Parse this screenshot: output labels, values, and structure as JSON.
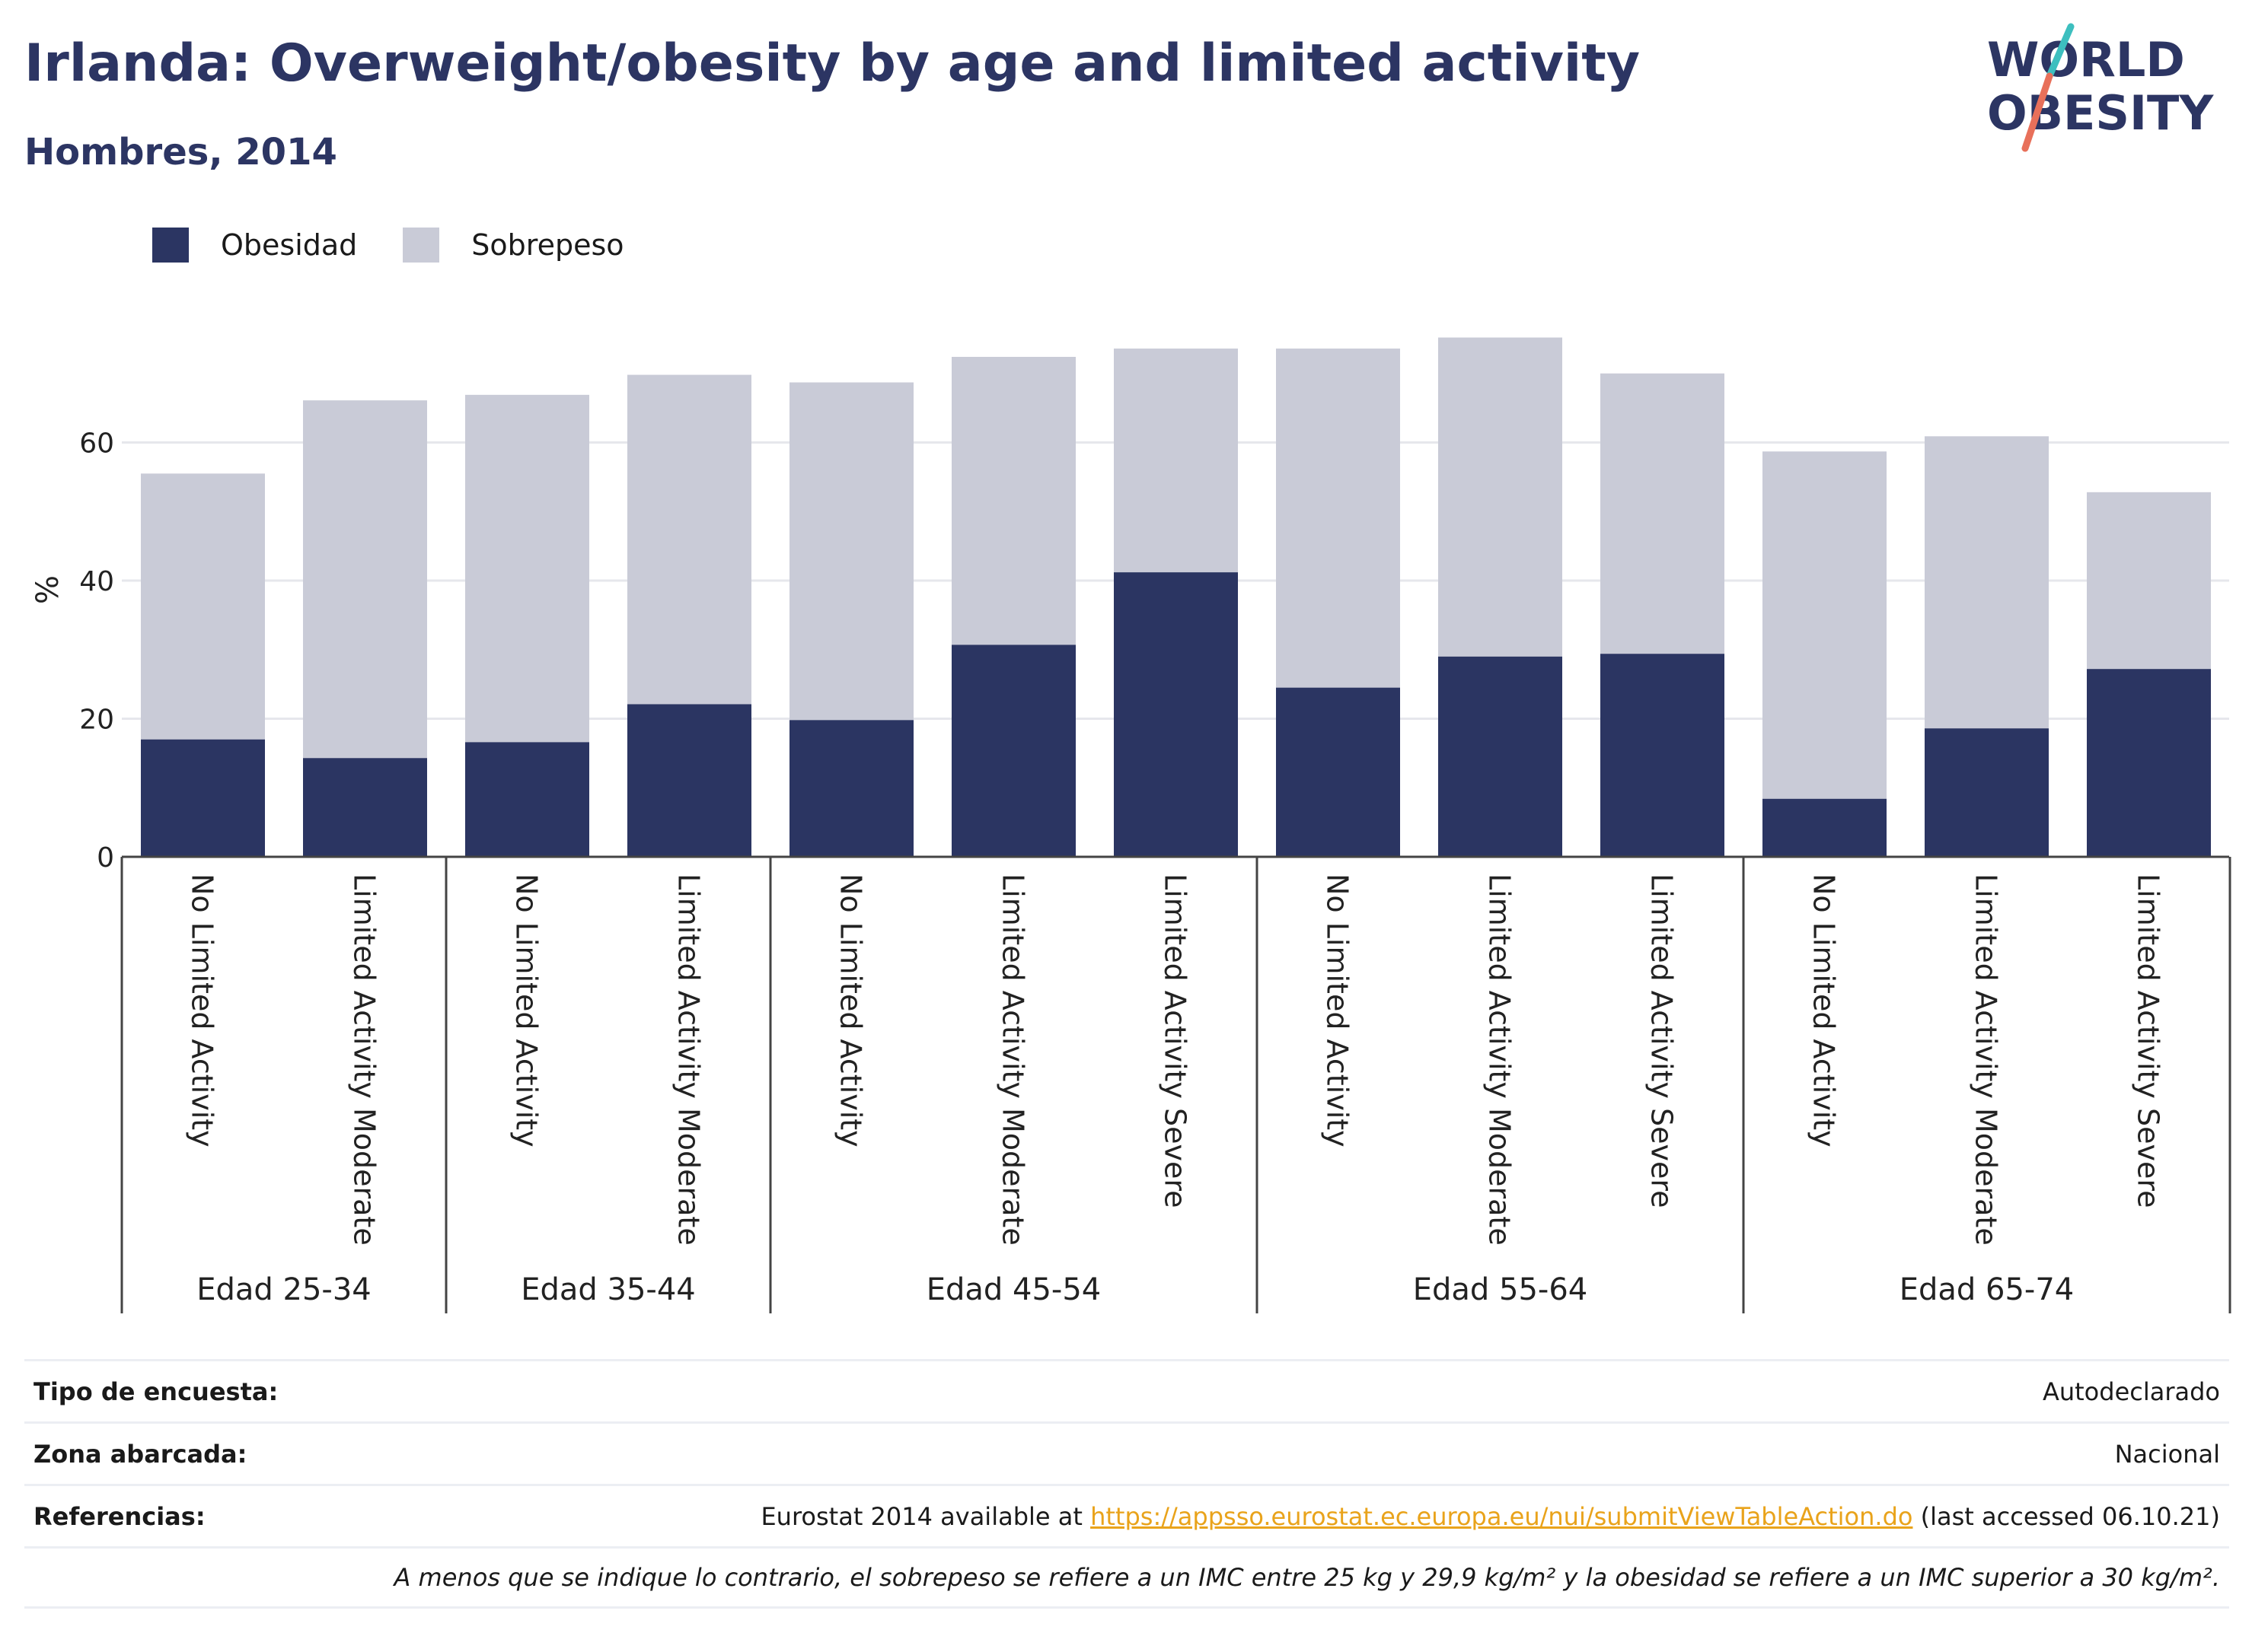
{
  "header": {
    "title": "Irlanda: Overweight/obesity by age and limited activity",
    "subtitle": "Hombres, 2014"
  },
  "logo": {
    "line1": "WORLD",
    "line2": "OBESITY"
  },
  "colors": {
    "obesity": "#2b3562",
    "overweight": "#c9cbd7",
    "title": "#2c3563",
    "link": "#e9a31b"
  },
  "legend": [
    {
      "label": "Obesidad",
      "color": "#2b3562"
    },
    {
      "label": "Sobrepeso",
      "color": "#c9cbd7"
    }
  ],
  "chart_data": {
    "type": "bar",
    "stacked": true,
    "ylabel": "%",
    "ylim": [
      0,
      80
    ],
    "yticks": [
      0,
      20,
      40,
      60
    ],
    "grid": true,
    "legend_position": "top-left",
    "groups": [
      {
        "label": "Edad 25-34",
        "categories": [
          "No Limited Activity",
          "Limited Activity Moderate"
        ]
      },
      {
        "label": "Edad 35-44",
        "categories": [
          "No Limited Activity",
          "Limited Activity Moderate"
        ]
      },
      {
        "label": "Edad 45-54",
        "categories": [
          "No Limited Activity",
          "Limited Activity Moderate",
          "Limited Activity Severe"
        ]
      },
      {
        "label": "Edad 55-64",
        "categories": [
          "No Limited Activity",
          "Limited Activity Moderate",
          "Limited Activity Severe"
        ]
      },
      {
        "label": "Edad 65-74",
        "categories": [
          "No Limited Activity",
          "Limited Activity Moderate",
          "Limited Activity Severe"
        ]
      }
    ],
    "series": [
      {
        "name": "Obesidad",
        "values": [
          17.0,
          14.3,
          16.6,
          22.1,
          19.8,
          30.7,
          41.2,
          24.5,
          29.0,
          29.4,
          8.4,
          18.6,
          27.2
        ]
      },
      {
        "name": "Sobrepeso",
        "values": [
          38.5,
          51.8,
          50.3,
          47.7,
          48.9,
          41.7,
          32.4,
          49.1,
          46.2,
          40.6,
          50.3,
          42.3,
          25.6
        ]
      }
    ]
  },
  "info": {
    "survey_label": "Tipo de encuesta:",
    "survey_value": "Autodeclarado",
    "area_label": "Zona abarcada:",
    "area_value": "Nacional",
    "ref_label": "Referencias:",
    "ref_prefix": "Eurostat 2014 available at ",
    "ref_link": "https://appsso.eurostat.ec.europa.eu/nui/submitViewTableAction.do",
    "ref_suffix": " (last accessed 06.10.21)",
    "note": "A menos que se indique lo contrario, el sobrepeso se refiere a un IMC entre 25 kg y 29,9 kg/m² y la obesidad se refiere a un IMC superior a 30 kg/m²."
  }
}
